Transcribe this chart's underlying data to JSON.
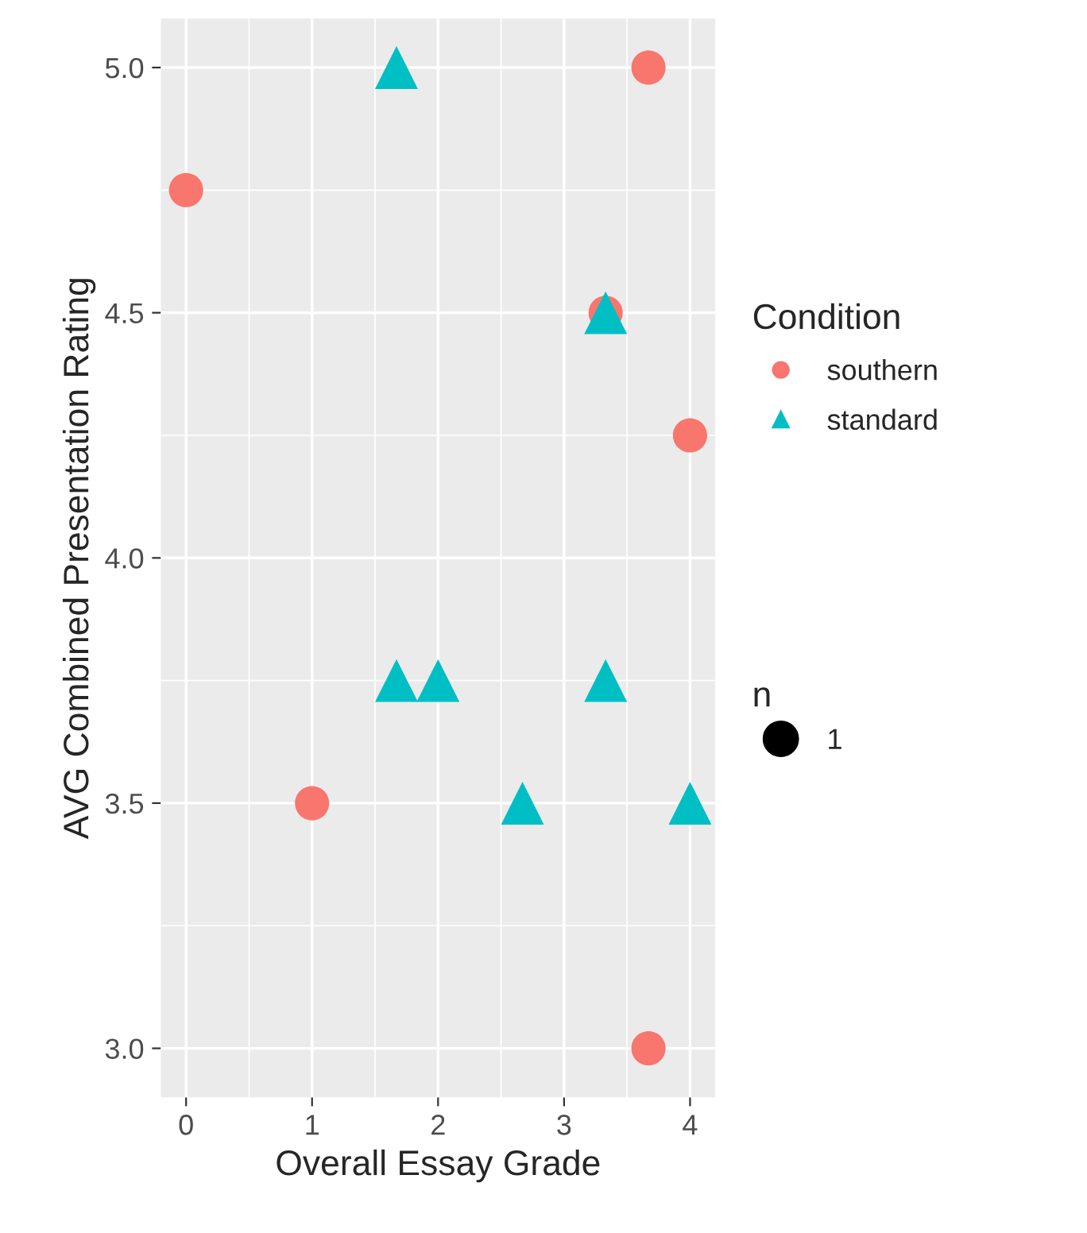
{
  "chart_data": {
    "type": "bubble",
    "xlabel": "Overall Essay Grade",
    "ylabel": "AVG Combined Presentation Rating",
    "legend_title": "Condition",
    "legend": "right",
    "grid": true,
    "xlim": [
      -0.2,
      4.2
    ],
    "xticks": [
      0,
      1,
      2,
      3,
      4
    ],
    "ylim": [
      2.9,
      5.1
    ],
    "yticks": [
      {
        "value": 3.0,
        "label": "3.0"
      },
      {
        "value": 3.5,
        "label": "3.5"
      },
      {
        "value": 4.0,
        "label": "4.0"
      },
      {
        "value": 4.5,
        "label": "4.5"
      },
      {
        "value": 5.0,
        "label": "5.0"
      }
    ],
    "size_legend": [
      1
    ],
    "annotations": [
      "n"
    ],
    "series": [
      {
        "name": "southern",
        "color": "#f8766d",
        "marker": "circle",
        "x": [
          0,
          3.67,
          3.33,
          4,
          1,
          3.67
        ],
        "values": [
          4.75,
          5.0,
          4.5,
          4.25,
          3.5,
          3.0
        ],
        "sizes": [
          1,
          1,
          1,
          1,
          1,
          1
        ]
      },
      {
        "name": "standard",
        "color": "#00bfc4",
        "marker": "triangle",
        "x": [
          1.67,
          3.33,
          1.67,
          2,
          3.33,
          2.67,
          4
        ],
        "values": [
          5.0,
          4.5,
          3.75,
          3.75,
          3.75,
          3.5,
          3.5
        ],
        "sizes": [
          1,
          1,
          1,
          1,
          1,
          1,
          1
        ]
      }
    ]
  }
}
